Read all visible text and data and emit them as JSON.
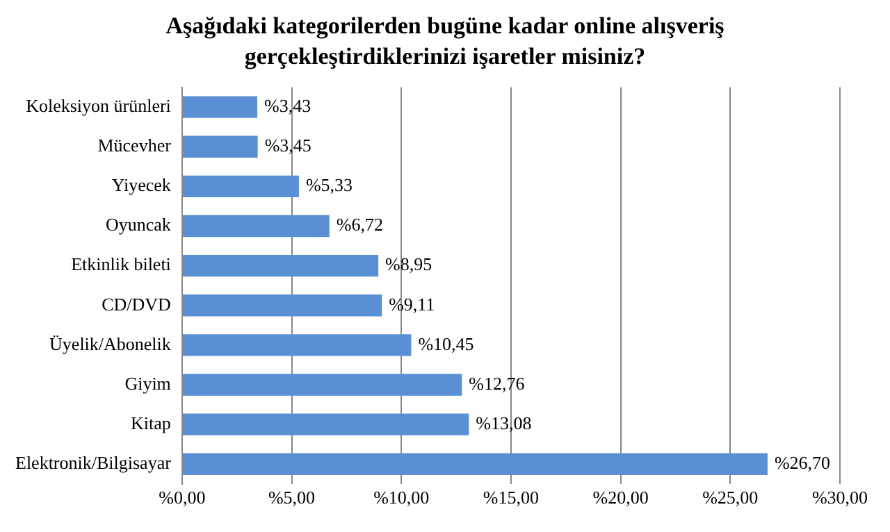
{
  "chart_data": {
    "type": "bar",
    "orientation": "horizontal",
    "title": "Aşağıdaki kategorilerden bugüne kadar online alışveriş gerçekleştirdiklerinizi işaretler misiniz?",
    "categories": [
      "Koleksiyon ürünleri",
      "Mücevher",
      "Yiyecek",
      "Oyuncak",
      "Etkinlik bileti",
      "CD/DVD",
      "Üyelik/Abonelik",
      "Giyim",
      "Kitap",
      "Elektronik/Bilgisayar"
    ],
    "values": [
      3.43,
      3.45,
      5.33,
      6.72,
      8.95,
      9.11,
      10.45,
      12.76,
      13.08,
      26.7
    ],
    "value_labels": [
      "%3,43",
      "%3,45",
      "%5,33",
      "%6,72",
      "%8,95",
      "%9,11",
      "%10,45",
      "%12,76",
      "%13,08",
      "%26,70"
    ],
    "color": "#5b8fd3",
    "xlim": [
      0,
      30
    ],
    "xticks": [
      {
        "value": 0,
        "label": "%0,00"
      },
      {
        "value": 5,
        "label": "%5,00"
      },
      {
        "value": 10,
        "label": "%10,00"
      },
      {
        "value": 15,
        "label": "%15,00"
      },
      {
        "value": 20,
        "label": "%20,00"
      },
      {
        "value": 25,
        "label": "%25,00"
      },
      {
        "value": 30,
        "label": "%30,00"
      }
    ],
    "grid": "x",
    "legend": false
  }
}
